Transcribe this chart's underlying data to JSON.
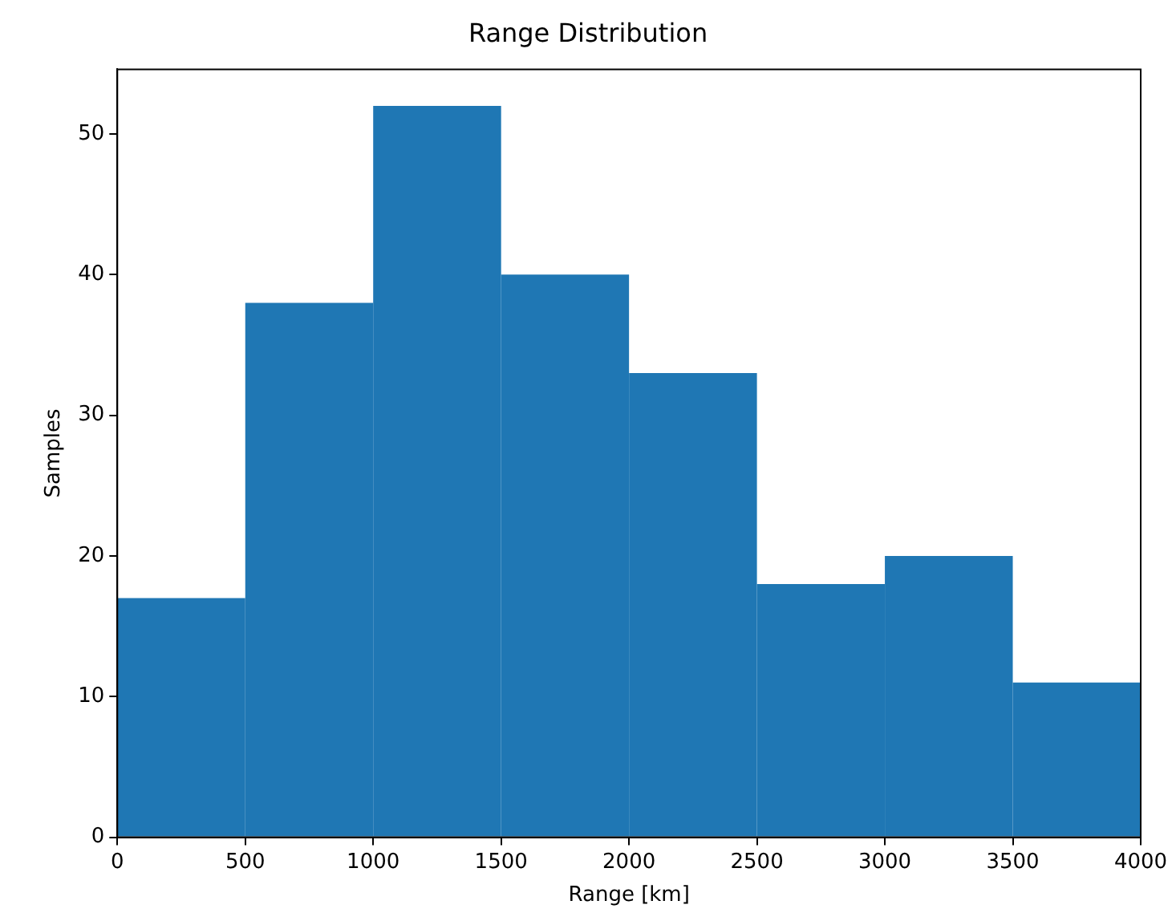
{
  "chart_data": {
    "type": "histogram",
    "title": "Range Distribution",
    "xlabel": "Range [km]",
    "ylabel": "Samples",
    "bins": [
      0,
      500,
      1000,
      1500,
      2000,
      2500,
      3000,
      3500,
      4000
    ],
    "values": [
      17,
      38,
      52,
      40,
      33,
      18,
      20,
      11
    ],
    "color": "#1f77b4",
    "xlim": [
      0,
      4000
    ],
    "xticks": [
      0,
      500,
      1000,
      1500,
      2000,
      2500,
      3000,
      3500,
      4000
    ],
    "ylim": [
      0,
      54.6
    ],
    "yticks": [
      0,
      10,
      20,
      30,
      40,
      50
    ],
    "grid": false,
    "legend": false
  }
}
